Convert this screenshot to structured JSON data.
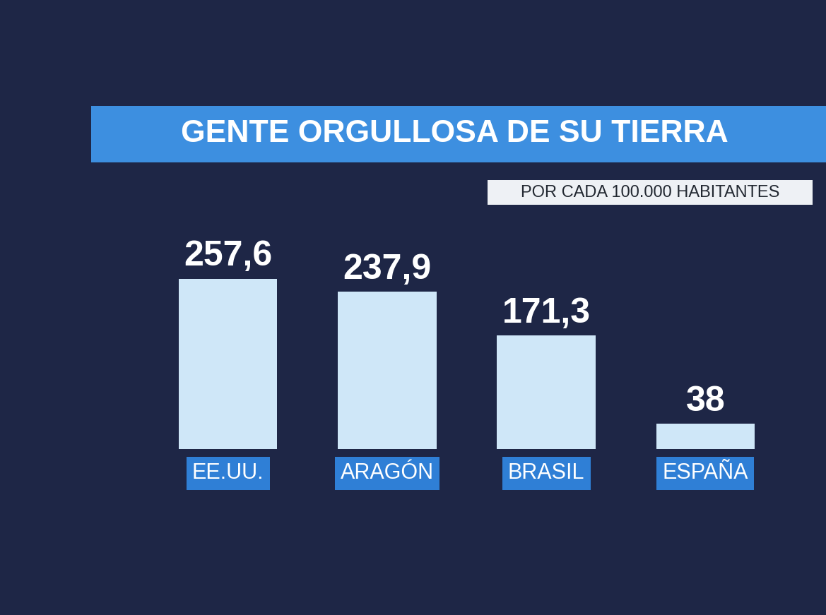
{
  "chart_data": {
    "type": "bar",
    "title": "GENTE ORGULLOSA DE SU TIERRA",
    "subtitle": "POR CADA 100.000 HABITANTES",
    "categories": [
      "EE.UU.",
      "ARAGÓN",
      "BRASIL",
      "ESPAÑA"
    ],
    "values": [
      257.6,
      237.9,
      171.3,
      38
    ],
    "value_labels": [
      "257,6",
      "237,9",
      "171,3",
      "38"
    ],
    "color": "#cfe7f8",
    "data_labels": true,
    "tick_labels": "x"
  }
}
